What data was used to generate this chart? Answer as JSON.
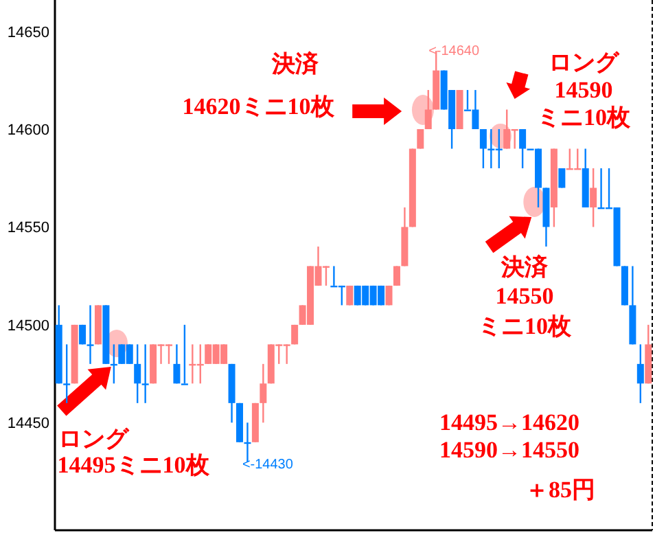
{
  "chart_data": {
    "type": "candlestick",
    "categories": [
      null,
      null,
      null,
      null,
      null,
      null,
      null,
      null,
      null,
      null,
      null,
      null,
      null,
      null,
      null,
      null,
      null,
      null,
      null,
      null,
      null,
      null,
      null,
      null,
      null,
      null,
      null,
      null,
      null,
      null,
      null,
      null,
      null,
      null,
      null,
      null,
      null,
      null,
      null,
      null,
      null,
      null,
      null,
      null,
      null,
      null,
      null,
      null,
      null,
      null,
      null,
      null,
      null,
      null,
      null,
      null,
      null,
      null,
      null,
      null,
      null,
      null,
      null,
      null,
      null,
      null,
      null,
      null,
      null,
      null,
      null,
      null,
      null,
      null,
      null,
      null
    ],
    "ohlc": [
      [
        14500,
        14510,
        14470,
        14470
      ],
      [
        14470,
        14490,
        14460,
        14470
      ],
      [
        14470,
        14500,
        14470,
        14500
      ],
      [
        14500,
        14500,
        14490,
        14490
      ],
      [
        14490,
        14510,
        14480,
        14490
      ],
      [
        14490,
        14510,
        14490,
        14510
      ],
      [
        14510,
        14510,
        14480,
        14480
      ],
      [
        14480,
        14490,
        14470,
        14480
      ],
      [
        14490,
        14490,
        14480,
        14480
      ],
      [
        14490,
        14490,
        14480,
        14480
      ],
      [
        14480,
        14490,
        14460,
        14470
      ],
      [
        14470,
        14490,
        14460,
        14470
      ],
      [
        14470,
        14490,
        14470,
        14490
      ],
      [
        14490,
        14490,
        14480,
        14490
      ],
      [
        14490,
        14490,
        14480,
        14490
      ],
      [
        14480,
        14490,
        14470,
        14470
      ],
      [
        14470,
        14500,
        14470,
        14470
      ],
      [
        14480,
        14490,
        14470,
        14480
      ],
      [
        14480,
        14490,
        14470,
        14480
      ],
      [
        14480,
        14490,
        14480,
        14490
      ],
      [
        14480,
        14490,
        14480,
        14490
      ],
      [
        14480,
        14490,
        14480,
        14490
      ],
      [
        14480,
        14480,
        14450,
        14460
      ],
      [
        14460,
        14460,
        14440,
        14440
      ],
      [
        14440,
        14450,
        14430,
        14440
      ],
      [
        14440,
        14460,
        14440,
        14460
      ],
      [
        14460,
        14480,
        14450,
        14470
      ],
      [
        14470,
        14490,
        14470,
        14490
      ],
      [
        14490,
        14490,
        14480,
        14490
      ],
      [
        14490,
        14490,
        14480,
        14490
      ],
      [
        14490,
        14500,
        14490,
        14500
      ],
      [
        14500,
        14510,
        14500,
        14510
      ],
      [
        14500,
        14530,
        14500,
        14530
      ],
      [
        14520,
        14540,
        14520,
        14530
      ],
      [
        14530,
        14530,
        14520,
        14530
      ],
      [
        14520,
        14530,
        14520,
        14520
      ],
      [
        14520,
        14520,
        14510,
        14520
      ],
      [
        14510,
        14520,
        14510,
        14520
      ],
      [
        14520,
        14520,
        14510,
        14510
      ],
      [
        14520,
        14520,
        14510,
        14510
      ],
      [
        14520,
        14520,
        14510,
        14510
      ],
      [
        14520,
        14520,
        14510,
        14510
      ],
      [
        14510,
        14520,
        14510,
        14520
      ],
      [
        14520,
        14530,
        14520,
        14530
      ],
      [
        14530,
        14560,
        14530,
        14550
      ],
      [
        14550,
        14590,
        14550,
        14590
      ],
      [
        14590,
        14600,
        14590,
        14600
      ],
      [
        14600,
        14620,
        14600,
        14610
      ],
      [
        14610,
        14640,
        14610,
        14630
      ],
      [
        14630,
        14630,
        14610,
        14610
      ],
      [
        14620,
        14620,
        14590,
        14600
      ],
      [
        14600,
        14620,
        14600,
        14620
      ],
      [
        14610,
        14620,
        14610,
        14610
      ],
      [
        14610,
        14620,
        14600,
        14600
      ],
      [
        14600,
        14600,
        14580,
        14590
      ],
      [
        14590,
        14600,
        14580,
        14590
      ],
      [
        14590,
        14600,
        14580,
        14590
      ],
      [
        14590,
        14610,
        14590,
        14600
      ],
      [
        14600,
        14600,
        14590,
        14600
      ],
      [
        14600,
        14600,
        14580,
        14590
      ],
      [
        14590,
        14590,
        14590,
        14590
      ],
      [
        14590,
        14590,
        14560,
        14570
      ],
      [
        14570,
        14570,
        14540,
        14550
      ],
      [
        14560,
        14590,
        14550,
        14590
      ],
      [
        14580,
        14580,
        14570,
        14570
      ],
      [
        14580,
        14590,
        14580,
        14580
      ],
      [
        14580,
        14590,
        14580,
        14580
      ],
      [
        14580,
        14590,
        14560,
        14560
      ],
      [
        14560,
        14580,
        14550,
        14570
      ],
      [
        14560,
        14580,
        14560,
        14560
      ],
      [
        14560,
        14580,
        14560,
        14560
      ],
      [
        14560,
        14560,
        14530,
        14530
      ],
      [
        14530,
        14530,
        14510,
        14510
      ],
      [
        14510,
        14530,
        14490,
        14490
      ],
      [
        14480,
        14490,
        14460,
        14470
      ],
      [
        14470,
        14500,
        14470,
        14490
      ]
    ],
    "colors": [
      "#0080ff",
      "#0080ff",
      "#ff8080",
      "#0080ff",
      "#0080ff",
      "#ff8080",
      "#0080ff",
      "#0080ff",
      "#0080ff",
      "#0080ff",
      "#0080ff",
      "#0080ff",
      "#ff8080",
      "#ff8080",
      "#ff8080",
      "#0080ff",
      "#0080ff",
      "#ff8080",
      "#ff8080",
      "#ff8080",
      "#ff8080",
      "#ff8080",
      "#0080ff",
      "#0080ff",
      "#0080ff",
      "#ff8080",
      "#ff8080",
      "#ff8080",
      "#ff8080",
      "#ff8080",
      "#ff8080",
      "#ff8080",
      "#ff8080",
      "#ff8080",
      "#ff8080",
      "#0080ff",
      "#0080ff",
      "#ff8080",
      "#0080ff",
      "#0080ff",
      "#0080ff",
      "#0080ff",
      "#ff8080",
      "#ff8080",
      "#ff8080",
      "#ff8080",
      "#ff8080",
      "#ff8080",
      "#ff8080",
      "#0080ff",
      "#0080ff",
      "#ff8080",
      "#0080ff",
      "#0080ff",
      "#0080ff",
      "#0080ff",
      "#0080ff",
      "#ff8080",
      "#ff8080",
      "#0080ff",
      "#0080ff",
      "#0080ff",
      "#0080ff",
      "#ff8080",
      "#0080ff",
      "#ff8080",
      "#ff8080",
      "#0080ff",
      "#ff8080",
      "#0080ff",
      "#0080ff",
      "#0080ff",
      "#0080ff",
      "#0080ff",
      "#0080ff",
      "#ff8080"
    ],
    "ylim": [
      14395,
      14666
    ],
    "yticks": [
      14450,
      14500,
      14550,
      14600,
      14650
    ],
    "tick_labels": "y",
    "grid": false,
    "annotations": [
      "決済\n14620ミニ10枚",
      "ロング\n14590\nミニ10枚",
      "決済\n14550\nミニ10枚",
      "ロング\n14495ミニ10枚",
      "14495→14620\n14590→14550",
      "＋85円",
      "<-14640",
      "<-14430"
    ]
  }
}
